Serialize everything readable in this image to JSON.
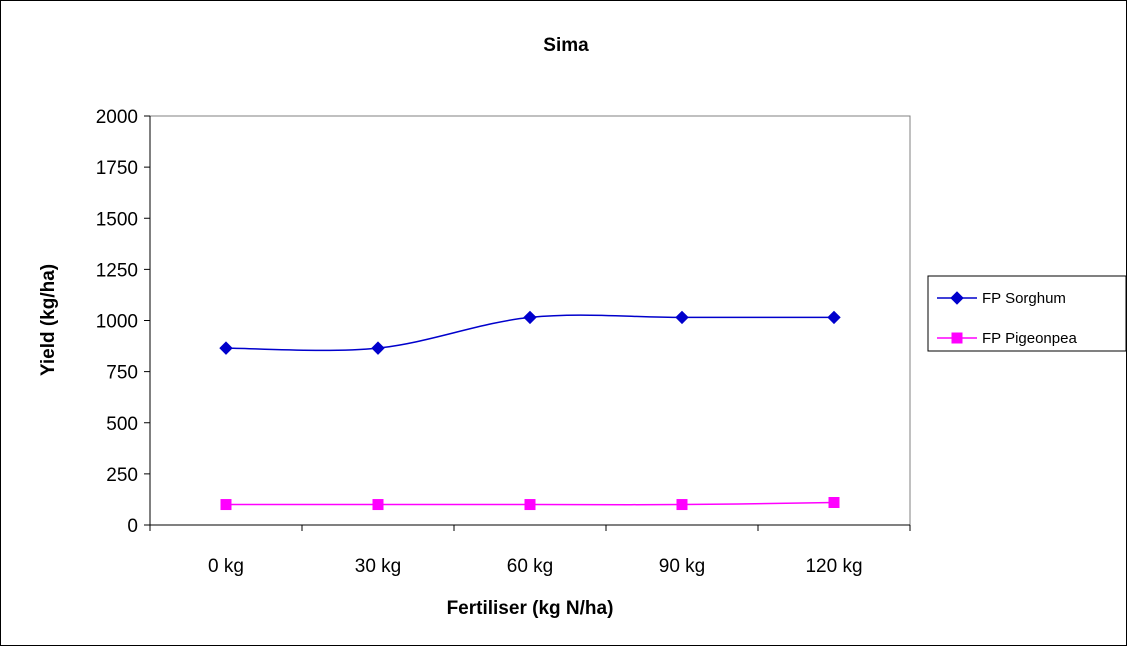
{
  "chart_data": {
    "type": "line",
    "title": "Sima",
    "xlabel": "Fertiliser (kg N/ha)",
    "ylabel": "Yield (kg/ha)",
    "categories": [
      "0 kg",
      "30 kg",
      "60 kg",
      "90 kg",
      "120 kg"
    ],
    "ylim": [
      0,
      2000
    ],
    "yticks": [
      0,
      250,
      500,
      750,
      1000,
      1250,
      1500,
      1750,
      2000
    ],
    "grid": false,
    "smooth": true,
    "legend_position": "right",
    "series": [
      {
        "name": "FP Sorghum",
        "values": [
          865,
          865,
          1015,
          1015,
          1015
        ],
        "color": "#0000cc",
        "marker": "diamond"
      },
      {
        "name": "FP Pigeonpea",
        "values": [
          100,
          100,
          100,
          100,
          110
        ],
        "color": "#ff00ff",
        "marker": "square"
      }
    ]
  }
}
